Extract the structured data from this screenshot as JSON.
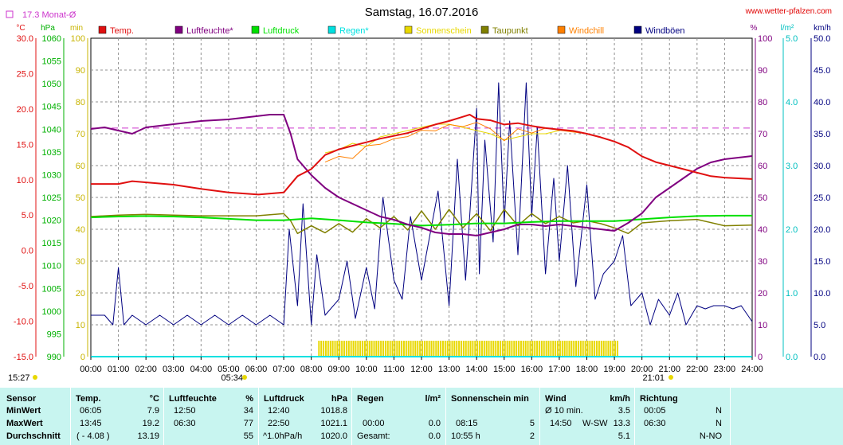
{
  "header": {
    "title": "Samstag, 16.07.2016",
    "site": "www.wetter-pfalzen.com",
    "monthly_avg_label": "17.3 Monat-Ø",
    "sunrise": "05:34",
    "sunset": "21:01",
    "clock": "15:27"
  },
  "colors": {
    "temp": "#e01010",
    "humidity": "#800080",
    "pressure": "#00e000",
    "rain": "#00e0e0",
    "sunshine": "#e8d800",
    "dewpoint": "#808000",
    "windchill": "#ff8000",
    "gusts": "#000080",
    "monthly_avg_line": "#cc33cc"
  },
  "chart_data": {
    "type": "line",
    "title": "Samstag, 16.07.2016",
    "x_labels": [
      "00:00",
      "01:00",
      "02:00",
      "03:00",
      "04:00",
      "05:00",
      "06:00",
      "07:00",
      "08:00",
      "09:00",
      "10:00",
      "11:00",
      "12:00",
      "13:00",
      "14:00",
      "15:00",
      "16:00",
      "17:00",
      "18:00",
      "19:00",
      "20:00",
      "21:00",
      "22:00",
      "23:00",
      "24:00"
    ],
    "xlim": [
      0,
      24
    ],
    "grid": true,
    "legend_position": "top",
    "legend": [
      {
        "label": "Temp.",
        "color": "#e01010"
      },
      {
        "label": "Luftfeuchte*",
        "color": "#800080"
      },
      {
        "label": "Luftdruck",
        "color": "#00e000"
      },
      {
        "label": "Regen*",
        "color": "#00e0e0"
      },
      {
        "label": "Sonnenschein",
        "color": "#e8d800"
      },
      {
        "label": "Taupunkt",
        "color": "#808000"
      },
      {
        "label": "Windchill",
        "color": "#ff8000"
      },
      {
        "label": "Windböen",
        "color": "#000080"
      }
    ],
    "axes": {
      "temp": {
        "unit": "°C",
        "ylim": [
          -15,
          30
        ],
        "ticks": [
          "30.0",
          "25.0",
          "20.0",
          "15.0",
          "10.0",
          "5.0",
          "0.0",
          "-5.0",
          "-10.0",
          "-15.0"
        ]
      },
      "pressure": {
        "unit": "hPa",
        "ylim": [
          990,
          1060
        ],
        "ticks": [
          "1060",
          "1055",
          "1050",
          "1045",
          "1040",
          "1035",
          "1030",
          "1025",
          "1020",
          "1015",
          "1010",
          "1005",
          "1000",
          "995",
          "990"
        ]
      },
      "sun": {
        "unit": "min",
        "ylim": [
          0,
          100
        ],
        "ticks": [
          "100",
          "90",
          "80",
          "70",
          "60",
          "50",
          "40",
          "30",
          "20",
          "10",
          "0"
        ]
      },
      "humidity": {
        "unit": "%",
        "ylim": [
          0,
          100
        ],
        "ticks": [
          "100",
          "90",
          "80",
          "70",
          "60",
          "50",
          "40",
          "30",
          "20",
          "10",
          "0"
        ]
      },
      "rain": {
        "unit": "l/m²",
        "ylim": [
          0,
          5
        ],
        "ticks": [
          "5.0",
          "4.0",
          "3.0",
          "2.0",
          "1.0",
          "0.0"
        ]
      },
      "wind": {
        "unit": "km/h",
        "ylim": [
          0,
          50
        ],
        "ticks": [
          "50.0",
          "45.0",
          "40.0",
          "35.0",
          "30.0",
          "25.0",
          "20.0",
          "15.0",
          "10.0",
          "5.0",
          "0.0"
        ]
      }
    },
    "monthly_avg_temp": 17.3,
    "sunshine_period": [
      8.25,
      19.1
    ],
    "series": [
      {
        "name": "Temp.",
        "axis": "temp",
        "x": [
          0,
          1,
          1.5,
          3,
          4,
          5,
          6.08,
          7,
          7.5,
          8,
          8.5,
          9,
          9.5,
          10,
          10.5,
          11,
          11.5,
          12,
          12.5,
          13,
          13.5,
          13.75,
          14,
          14.5,
          15,
          15.5,
          16,
          16.5,
          17,
          17.5,
          18,
          18.5,
          19,
          19.5,
          20,
          20.5,
          21,
          21.5,
          22,
          22.5,
          23,
          24
        ],
        "y": [
          9.4,
          9.4,
          9.8,
          9.3,
          8.7,
          8.2,
          7.9,
          8.2,
          10.5,
          11.5,
          13.5,
          14.3,
          14.8,
          15.3,
          15.8,
          16.2,
          16.6,
          17.2,
          17.8,
          18.3,
          18.9,
          19.2,
          18.6,
          18.4,
          17.8,
          18.0,
          17.6,
          17.3,
          17.1,
          16.9,
          16.5,
          16.0,
          15.4,
          14.6,
          13.3,
          12.5,
          12.0,
          11.5,
          11.0,
          10.5,
          10.3,
          10.1
        ]
      },
      {
        "name": "Luftfeuchte*",
        "axis": "humidity",
        "x": [
          0,
          0.5,
          1,
          1.5,
          2,
          3,
          4,
          5,
          6,
          6.5,
          7,
          7.25,
          7.5,
          8,
          8.5,
          9,
          10,
          10.5,
          11,
          11.5,
          12,
          12.5,
          13,
          13.5,
          14,
          14.5,
          15,
          15.5,
          16,
          16.5,
          17,
          17.5,
          18,
          18.5,
          19,
          19.5,
          20,
          20.5,
          21,
          21.5,
          22,
          22.5,
          23,
          24
        ],
        "y": [
          71.5,
          72,
          71,
          70,
          72,
          73,
          74,
          74.5,
          75.5,
          76,
          76,
          70,
          62,
          57,
          53,
          50,
          46,
          44,
          43,
          41.5,
          40.5,
          39,
          38.5,
          38.5,
          38,
          39,
          40,
          41.5,
          41.5,
          41,
          41.5,
          41,
          40.5,
          40,
          39.5,
          42,
          45,
          50,
          53,
          56,
          59,
          61,
          62,
          63
        ]
      },
      {
        "name": "Luftdruck",
        "axis": "pressure",
        "x": [
          0,
          1,
          2,
          3,
          4,
          5,
          6,
          7,
          8,
          9,
          10,
          11,
          11.5,
          12,
          13,
          14,
          15,
          16,
          17,
          18,
          19,
          20,
          21,
          22,
          23,
          24
        ],
        "y": [
          1020.6,
          1020.8,
          1020.9,
          1020.8,
          1020.6,
          1020.3,
          1020.0,
          1020.0,
          1020.4,
          1020.0,
          1019.5,
          1019.2,
          1019.0,
          1018.8,
          1019.0,
          1019.3,
          1019.3,
          1019.6,
          1019.8,
          1019.8,
          1019.8,
          1020.2,
          1020.6,
          1020.9,
          1021.0,
          1021.0
        ]
      },
      {
        "name": "Regen*",
        "axis": "rain",
        "x": [
          0,
          24
        ],
        "y": [
          0,
          0
        ]
      },
      {
        "name": "Sonnenschein",
        "axis": "sun",
        "x": [
          8.5,
          9,
          9.5,
          10,
          10.5,
          11,
          11.5,
          12,
          12.5,
          13,
          13.5,
          14,
          14.5,
          15,
          15.5,
          16,
          16.5,
          17
        ],
        "y": [
          64,
          65,
          67,
          66,
          69,
          70,
          71,
          72,
          73,
          73,
          72,
          71,
          70,
          68,
          69,
          70,
          70,
          71
        ]
      },
      {
        "name": "Taupunkt",
        "axis": "temp",
        "x": [
          0,
          1,
          2,
          3,
          4,
          5,
          6,
          7,
          7.25,
          7.5,
          8,
          8.5,
          9,
          9.5,
          10,
          10.5,
          11,
          11.5,
          12,
          12.5,
          13,
          13.5,
          14,
          14.5,
          15,
          15.5,
          16,
          16.5,
          17,
          17.5,
          18,
          18.5,
          19,
          19.5,
          20,
          21,
          22,
          23,
          24
        ],
        "y": [
          4.8,
          5.0,
          5.1,
          5.0,
          4.9,
          4.9,
          4.9,
          5.2,
          4.2,
          2.4,
          3.5,
          2.5,
          3.8,
          2.6,
          4.5,
          3.2,
          4.8,
          2.9,
          5.6,
          3.0,
          5.8,
          3.2,
          5.2,
          2.8,
          5.8,
          3.5,
          5.2,
          3.8,
          4.8,
          3.9,
          4.2,
          3.8,
          3.2,
          2.4,
          3.9,
          4.2,
          4.4,
          3.5,
          3.6
        ]
      },
      {
        "name": "Windchill",
        "axis": "temp",
        "x": [
          8.5,
          9,
          9.5,
          10,
          10.5,
          11,
          11.5,
          12,
          12.5,
          13,
          13.5,
          14,
          14.5,
          15,
          15.5,
          16,
          16.5,
          17,
          18,
          19
        ],
        "y": [
          12.5,
          13.3,
          13.0,
          14.8,
          15.0,
          15.8,
          16.1,
          17.0,
          16.9,
          17.8,
          17.5,
          18.1,
          17.2,
          15.5,
          17.2,
          16.6,
          17.3,
          17.0,
          16.5,
          15.4
        ]
      },
      {
        "name": "Windböen",
        "axis": "wind",
        "x": [
          0,
          0.5,
          0.8,
          1,
          1.2,
          1.5,
          2,
          2.5,
          3,
          3.5,
          4,
          4.5,
          5,
          5.5,
          6,
          6.5,
          7,
          7.2,
          7.5,
          7.7,
          8,
          8.2,
          8.5,
          9,
          9.3,
          9.6,
          10,
          10.3,
          10.6,
          11,
          11.3,
          11.6,
          12,
          12.3,
          12.6,
          13,
          13.3,
          13.6,
          14,
          14.1,
          14.3,
          14.6,
          14.8,
          15,
          15.2,
          15.5,
          15.8,
          16,
          16.2,
          16.5,
          16.8,
          17,
          17.3,
          17.6,
          18,
          18.3,
          18.6,
          19,
          19.3,
          19.6,
          20,
          20.3,
          20.6,
          21,
          21.3,
          21.6,
          22,
          22.3,
          22.6,
          23,
          23.3,
          23.6,
          24
        ],
        "y": [
          6.5,
          6.5,
          5.0,
          14.0,
          5.0,
          6.5,
          5.0,
          6.5,
          5.0,
          6.5,
          5.0,
          6.5,
          5.0,
          6.5,
          5.0,
          6.5,
          5.0,
          20,
          8,
          24,
          5,
          16,
          6.5,
          9,
          15,
          6,
          14,
          7.5,
          25,
          12,
          9,
          22,
          12,
          19,
          26,
          8,
          31,
          12,
          39,
          13,
          34,
          18,
          43,
          21,
          37,
          16,
          43,
          22,
          36,
          13,
          28,
          15,
          30,
          11,
          27,
          9,
          13,
          15,
          19,
          8,
          10,
          5,
          9,
          6.5,
          10,
          5,
          8,
          7.5,
          8,
          8,
          7.5,
          8,
          5.5
        ]
      }
    ]
  },
  "stats": {
    "headers": {
      "sensor": "Sensor",
      "temp": "Temp.",
      "temp_unit": "°C",
      "hum": "Luftfeuchte",
      "hum_unit": "%",
      "press": "Luftdruck",
      "press_unit": "hPa",
      "rain": "Regen",
      "rain_unit": "l/m²",
      "sun": "Sonnenschein min",
      "wind": "Wind",
      "wind_unit": "km/h",
      "dir": "Richtung"
    },
    "row_labels": {
      "min": "MinWert",
      "max": "MaxWert",
      "avg": "Durchschnitt"
    },
    "min": {
      "temp_time": "06:05",
      "temp": "7.9",
      "hum_time": "12:50",
      "hum": "34",
      "press_time": "12:40",
      "press": "1018.8",
      "wind_label": "Ø 10 min.",
      "wind": "3.5",
      "dir_time": "00:05",
      "dir": "N"
    },
    "max": {
      "temp_time": "13:45",
      "temp": "19.2",
      "hum_time": "06:30",
      "hum": "77",
      "press_time": "22:50",
      "press": "1021.1",
      "rain_time": "00:00",
      "rain": "0.0",
      "sun_time": "08:15",
      "sun": "5",
      "wind_time": "14:50",
      "wind_dir": "W-SW",
      "wind": "13.3",
      "dir_time": "06:30",
      "dir": "N"
    },
    "avg": {
      "temp_note": "( - 4.08 )",
      "temp": "13.19",
      "hum": "55",
      "press_note": "^1.0hPa/h",
      "press": "1020.0",
      "rain_label": "Gesamt:",
      "rain": "0.0",
      "sun_time": "10:55 h",
      "sun": "2",
      "wind": "5.1",
      "dir": "N-NO"
    }
  }
}
